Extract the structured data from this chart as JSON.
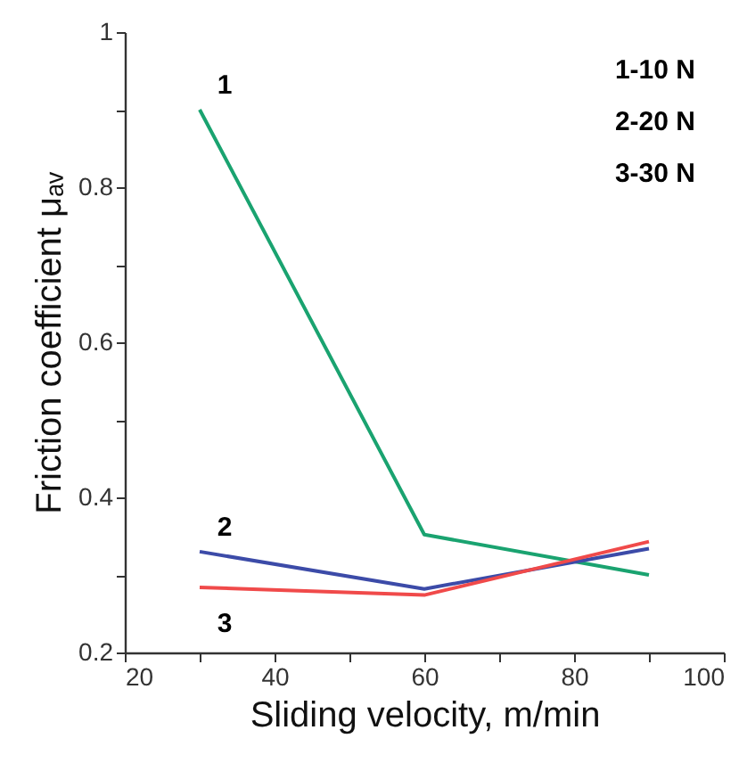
{
  "chart_data": {
    "type": "line",
    "xlabel": "Sliding velocity, m/min",
    "ylabel": "Friction coefficient μₐᵥ",
    "x": [
      30,
      60,
      90
    ],
    "series": [
      {
        "name": "1",
        "color": "#1aa370",
        "values": [
          0.9,
          0.352,
          0.3
        ]
      },
      {
        "name": "2",
        "color": "#3c4ba8",
        "values": [
          0.33,
          0.282,
          0.334
        ]
      },
      {
        "name": "3",
        "color": "#f04a4a",
        "values": [
          0.284,
          0.274,
          0.343
        ]
      }
    ],
    "xlim": [
      20,
      100
    ],
    "xticks": [
      20,
      {
        "value": 30,
        "label": null
      },
      40,
      {
        "value": 50,
        "label": null
      },
      60,
      {
        "value": 70,
        "label": null
      },
      80,
      {
        "value": 90,
        "label": null
      },
      100
    ],
    "ylim": [
      0.2,
      1
    ],
    "yticks": [
      0.2,
      {
        "value": 0.3,
        "label": null
      },
      0.4,
      {
        "value": 0.5,
        "label": null
      },
      0.6,
      {
        "value": 0.7,
        "label": null
      },
      0.8,
      {
        "value": 0.9,
        "label": null
      },
      1
    ],
    "annotations": [
      "1-10 N",
      "2-20 N",
      "3-30 N"
    ],
    "grid": false,
    "marker": "none",
    "line_style": "solid"
  }
}
